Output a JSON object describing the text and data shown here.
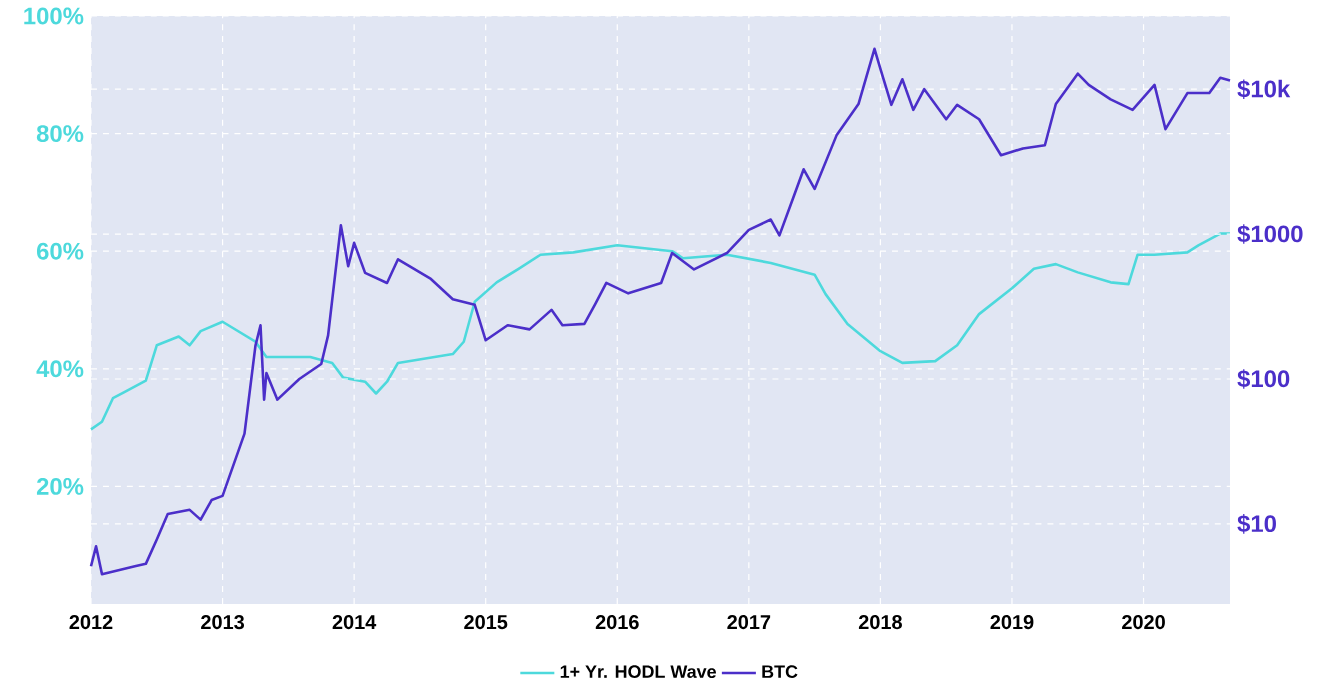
{
  "chart_data": {
    "type": "line",
    "xlim": [
      "2012-01",
      "2020-08-28"
    ],
    "ylim": [
      0,
      100
    ],
    "y2lim": [
      2.8,
      32000
    ],
    "log": "y2",
    "grid": true,
    "legend": "bottom",
    "xticks": [
      "2012",
      "2013",
      "2014",
      "2015",
      "2016",
      "2017",
      "2018",
      "2019",
      "2020"
    ],
    "yticks": [
      {
        "value": 20,
        "label": "20%"
      },
      {
        "value": 40,
        "label": "40%"
      },
      {
        "value": 60,
        "label": "60%"
      },
      {
        "value": 80,
        "label": "80%"
      },
      {
        "value": 100,
        "label": "100%"
      }
    ],
    "y2ticks": [
      {
        "value": 10,
        "label": "$10"
      },
      {
        "value": 100,
        "label": "$100"
      },
      {
        "value": 1000,
        "label": "$1000"
      },
      {
        "value": 10000,
        "label": "$10k"
      }
    ],
    "series": [
      {
        "name": "1+ Yr. HODL Wave",
        "color": "#4dd9dc",
        "x": [
          "2012-01",
          "2012-02",
          "2012-03",
          "2012-04",
          "2012-06",
          "2012-07",
          "2012-09",
          "2012-10",
          "2012-11",
          "2013-01",
          "2013-04",
          "2013-05",
          "2013-09",
          "2013-11",
          "2013-12",
          "2014-02",
          "2014-03",
          "2014-04",
          "2014-05",
          "2014-10",
          "2014-11",
          "2014-12",
          "2015-02",
          "2015-04",
          "2015-06",
          "2015-09",
          "2016-01",
          "2016-06",
          "2016-07",
          "2016-11",
          "2017-03",
          "2017-07",
          "2017-08",
          "2017-10",
          "2018-01",
          "2018-03",
          "2018-06",
          "2018-08",
          "2018-10",
          "2019-01",
          "2019-03",
          "2019-05",
          "2019-07",
          "2019-10",
          "2019-11-20",
          "2019-12-15",
          "2020-02",
          "2020-05",
          "2020-06",
          "2020-08",
          "2020-08-28"
        ],
        "values": [
          29.7,
          31,
          35,
          36,
          38,
          44,
          45.5,
          44,
          46.4,
          48,
          44.6,
          42,
          42,
          41,
          38.5,
          37.8,
          35.8,
          37.8,
          41,
          42.5,
          44.6,
          51.4,
          54.7,
          57,
          59.4,
          59.8,
          61,
          60,
          58.8,
          59.4,
          58,
          56,
          52.7,
          47.6,
          43,
          41,
          41.3,
          44,
          49.3,
          53.7,
          57,
          57.8,
          56.4,
          54.7,
          54.4,
          59.4,
          59.4,
          59.8,
          61,
          63,
          63
        ]
      },
      {
        "name": "BTC",
        "color": "#4b2fc9",
        "axis": "y2",
        "x": [
          "2012-01",
          "2012-01-15",
          "2012-02",
          "2012-05",
          "2012-06",
          "2012-07",
          "2012-08",
          "2012-10",
          "2012-11",
          "2012-12",
          "2013-01",
          "2013-03",
          "2013-04",
          "2013-04-15",
          "2013-04-25",
          "2013-05",
          "2013-06",
          "2013-08",
          "2013-10",
          "2013-10-20",
          "2013-11-25",
          "2013-12-15",
          "2014-01",
          "2014-02",
          "2014-04",
          "2014-05",
          "2014-08",
          "2014-10",
          "2014-12",
          "2015-01",
          "2015-03",
          "2015-05",
          "2015-07",
          "2015-08",
          "2015-10",
          "2015-11",
          "2015-12",
          "2016-02",
          "2016-05",
          "2016-06",
          "2016-08",
          "2016-11",
          "2017-01",
          "2017-03",
          "2017-03-25",
          "2017-05",
          "2017-06",
          "2017-07",
          "2017-09",
          "2017-11",
          "2017-12-15",
          "2018-01",
          "2018-02",
          "2018-03",
          "2018-04",
          "2018-05",
          "2018-07",
          "2018-08",
          "2018-10",
          "2018-12",
          "2019-02",
          "2019-04",
          "2019-05",
          "2019-07",
          "2019-08",
          "2019-10",
          "2019-12",
          "2020-02",
          "2020-03",
          "2020-05",
          "2020-07",
          "2020-08",
          "2020-08-28"
        ],
        "values": [
          5.1,
          7.0,
          4.5,
          5.1,
          5.3,
          7.8,
          11.7,
          12.5,
          10.7,
          14.6,
          15.6,
          42,
          170,
          235,
          72,
          110,
          72,
          100,
          127,
          200,
          1150,
          600,
          870,
          540,
          460,
          670,
          490,
          355,
          325,
          185,
          235,
          220,
          300,
          235,
          240,
          330,
          460,
          390,
          460,
          740,
          570,
          740,
          1070,
          1260,
          980,
          1740,
          2800,
          2050,
          4800,
          7900,
          19000,
          13800,
          7800,
          11700,
          7200,
          10000,
          6200,
          7800,
          6200,
          3500,
          3900,
          4100,
          7900,
          12800,
          10700,
          8500,
          7200,
          10700,
          5300,
          9400,
          9400,
          12000,
          11500
        ]
      }
    ]
  }
}
